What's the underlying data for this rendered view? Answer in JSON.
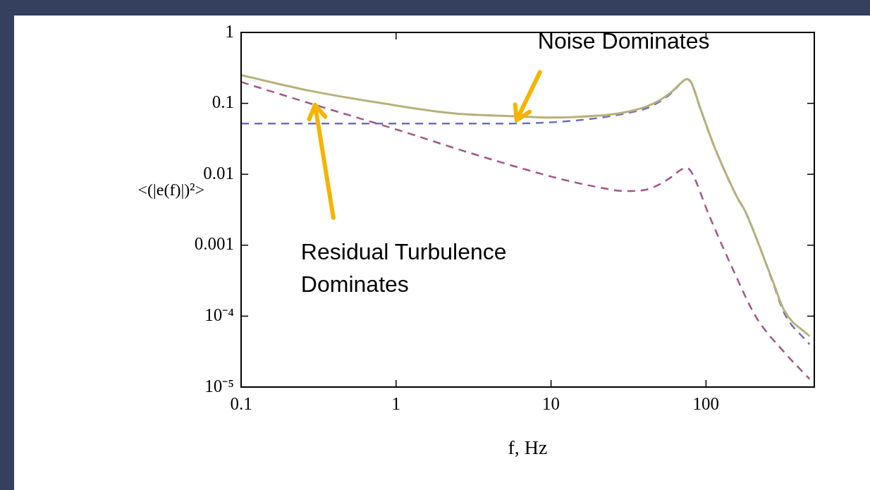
{
  "chart_data": {
    "type": "line",
    "xlabel": "f, Hz",
    "ylabel": "<(|e(f)|)²>",
    "log": "xy",
    "grid": false,
    "legend": false,
    "marker": "none",
    "xlim": [
      0.1,
      500
    ],
    "xticks": [
      0.1,
      1,
      10,
      100
    ],
    "ylim": [
      1e-05,
      1
    ],
    "yticks": [
      1,
      0.1,
      0.01,
      0.001,
      {
        "value": 0.0001,
        "label": "10⁻⁴"
      },
      {
        "value": 1e-05,
        "label": "10⁻⁵"
      }
    ],
    "series": [
      {
        "color": "#b8b07a",
        "line_style": "solid",
        "x": [
          0.1,
          0.28,
          0.82,
          2.4,
          5.8,
          10,
          20,
          30,
          40,
          50,
          60,
          70,
          75,
          80,
          91,
          112,
          160,
          178,
          270,
          320,
          466
        ],
        "values": [
          0.25,
          0.15,
          0.1,
          0.072,
          0.066,
          0.063,
          0.067,
          0.075,
          0.088,
          0.11,
          0.145,
          0.2,
          0.22,
          0.2,
          0.091,
          0.026,
          0.0046,
          0.0031,
          0.00031,
          0.00012,
          5.2e-05
        ]
      },
      {
        "color": "#6e6eb8",
        "line_style": "dashed",
        "x": [
          0.1,
          1,
          5,
          10,
          20,
          30,
          40,
          50,
          60,
          70,
          75,
          80,
          91,
          112,
          160,
          178,
          270,
          320,
          466
        ],
        "values": [
          0.052,
          0.052,
          0.052,
          0.054,
          0.062,
          0.072,
          0.083,
          0.105,
          0.14,
          0.2,
          0.22,
          0.2,
          0.09,
          0.026,
          0.0046,
          0.0031,
          0.0003,
          0.00011,
          4e-05
        ]
      },
      {
        "color": "#a3558a",
        "line_style": "dashed",
        "x": [
          0.1,
          0.3,
          1,
          3,
          10,
          15,
          20,
          30,
          40,
          50,
          60,
          70,
          75,
          80,
          105,
          149,
          210,
          320,
          466
        ],
        "values": [
          0.2,
          0.095,
          0.043,
          0.02,
          0.0093,
          0.0075,
          0.0066,
          0.0058,
          0.006,
          0.0072,
          0.0092,
          0.0118,
          0.0123,
          0.011,
          0.0026,
          0.00046,
          9.8e-05,
          3.1e-05,
          1.3e-05
        ]
      }
    ],
    "annotations": [
      {
        "text": "Noise Dominates",
        "x": 6,
        "y": 0.058
      },
      {
        "text": "Residual Turbulence Dominates",
        "x": 0.3,
        "y": 0.095
      }
    ]
  }
}
